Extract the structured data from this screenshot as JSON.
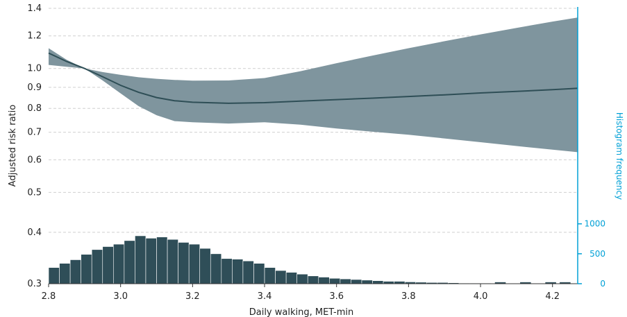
{
  "chart_data": {
    "type": "line",
    "xlabel": "Daily walking, MET-min",
    "ylabel": "Adjusted risk ratio",
    "y2label": "Histogram frequency",
    "xlim": [
      2.8,
      4.27
    ],
    "ylim": [
      0.3,
      1.4
    ],
    "yscale": "log",
    "y2lim": [
      0,
      4600
    ],
    "x_ticks": [
      "2.8",
      "3.0",
      "3.2",
      "3.4",
      "3.6",
      "3.8",
      "4.0",
      "4.2"
    ],
    "y_ticks": [
      "0.3",
      "0.4",
      "0.5",
      "0.6",
      "0.7",
      "0.8",
      "0.9",
      "1.0",
      "1.2",
      "1.4"
    ],
    "y2_ticks": [
      "0",
      "500",
      "1000"
    ],
    "grid": "horizontal dashed",
    "colors": {
      "curve": "#2e4e56",
      "band": "#7f959e",
      "bars": "#2f4e58",
      "secondary_axis": "#00a0d6"
    },
    "curve": {
      "x": [
        2.8,
        2.85,
        2.9,
        2.95,
        3.0,
        3.05,
        3.1,
        3.15,
        3.2,
        3.3,
        3.4,
        3.5,
        3.6,
        3.7,
        3.8,
        3.9,
        4.0,
        4.1,
        4.2,
        4.27
      ],
      "y": [
        1.09,
        1.04,
        1.0,
        0.955,
        0.91,
        0.875,
        0.85,
        0.835,
        0.828,
        0.823,
        0.826,
        0.833,
        0.84,
        0.847,
        0.855,
        0.863,
        0.872,
        0.88,
        0.888,
        0.895
      ]
    },
    "band": {
      "x": [
        2.8,
        2.85,
        2.9,
        2.95,
        3.0,
        3.05,
        3.1,
        3.15,
        3.2,
        3.3,
        3.4,
        3.5,
        3.6,
        3.7,
        3.8,
        3.9,
        4.0,
        4.1,
        4.2,
        4.27
      ],
      "upper": [
        1.12,
        1.05,
        1.0,
        0.98,
        0.965,
        0.952,
        0.944,
        0.938,
        0.934,
        0.935,
        0.948,
        0.985,
        1.03,
        1.075,
        1.12,
        1.165,
        1.21,
        1.255,
        1.3,
        1.33
      ],
      "lower": [
        1.02,
        1.01,
        1.0,
        0.935,
        0.87,
        0.81,
        0.77,
        0.745,
        0.74,
        0.735,
        0.74,
        0.73,
        0.715,
        0.702,
        0.69,
        0.676,
        0.662,
        0.648,
        0.635,
        0.626
      ]
    },
    "histogram": {
      "bin_width": 0.03,
      "start": 2.8,
      "values": [
        270,
        340,
        400,
        490,
        570,
        620,
        660,
        720,
        800,
        760,
        780,
        740,
        690,
        660,
        590,
        500,
        420,
        410,
        380,
        340,
        270,
        220,
        190,
        160,
        130,
        110,
        90,
        80,
        70,
        60,
        50,
        40,
        40,
        30,
        25,
        20,
        20,
        15,
        10,
        10,
        10,
        5,
        5,
        5,
        5,
        5,
        5,
        5,
        5,
        5
      ],
      "sparse_tail": [
        [
          4.04,
          25
        ],
        [
          4.11,
          25
        ],
        [
          4.18,
          25
        ],
        [
          4.22,
          25
        ]
      ]
    }
  }
}
